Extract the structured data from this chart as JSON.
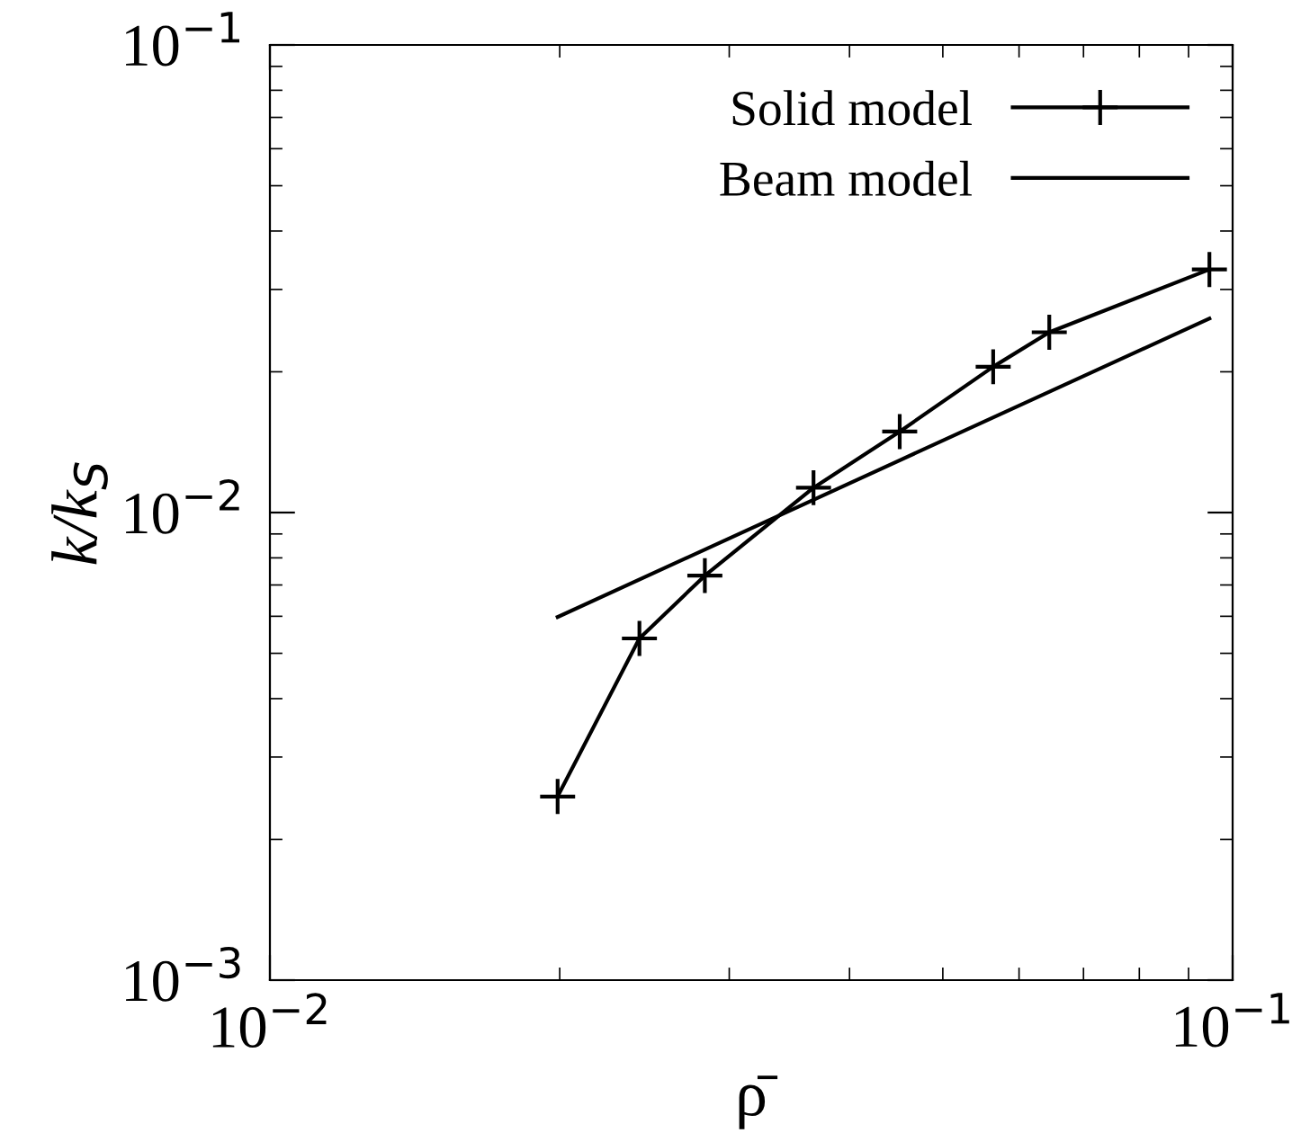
{
  "chart_data": {
    "type": "line",
    "xlabel": "ρ̄",
    "ylabel": "k/k$_{S}$",
    "log": "xy",
    "xlim": [
      0.01,
      0.1
    ],
    "ylim": [
      0.001,
      0.1
    ],
    "xticks": [
      {
        "value": 0.01,
        "label": "10$^{−2}$"
      },
      {
        "value": 0.1,
        "label": "10$^{−1}$"
      }
    ],
    "yticks": [
      {
        "value": 0.001,
        "label": "10$^{−3}$"
      },
      {
        "value": 0.01,
        "label": "10$^{−2}$"
      },
      {
        "value": 0.1,
        "label": "10$^{−1}$"
      }
    ],
    "legend": "top right",
    "grid": false,
    "series": [
      {
        "name": "Solid model",
        "color": "#000000",
        "marker": "cross",
        "x": [
          0.0199,
          0.0242,
          0.0283,
          0.0367,
          0.0451,
          0.0564,
          0.0645,
          0.0946
        ],
        "values": [
          0.00247,
          0.00538,
          0.00733,
          0.0113,
          0.0149,
          0.0205,
          0.0243,
          0.0331
        ]
      },
      {
        "name": "Beam model",
        "color": "#000000",
        "marker": "none",
        "x": [
          0.0199,
          0.0946
        ],
        "values": [
          0.00598,
          0.026
        ]
      }
    ]
  }
}
